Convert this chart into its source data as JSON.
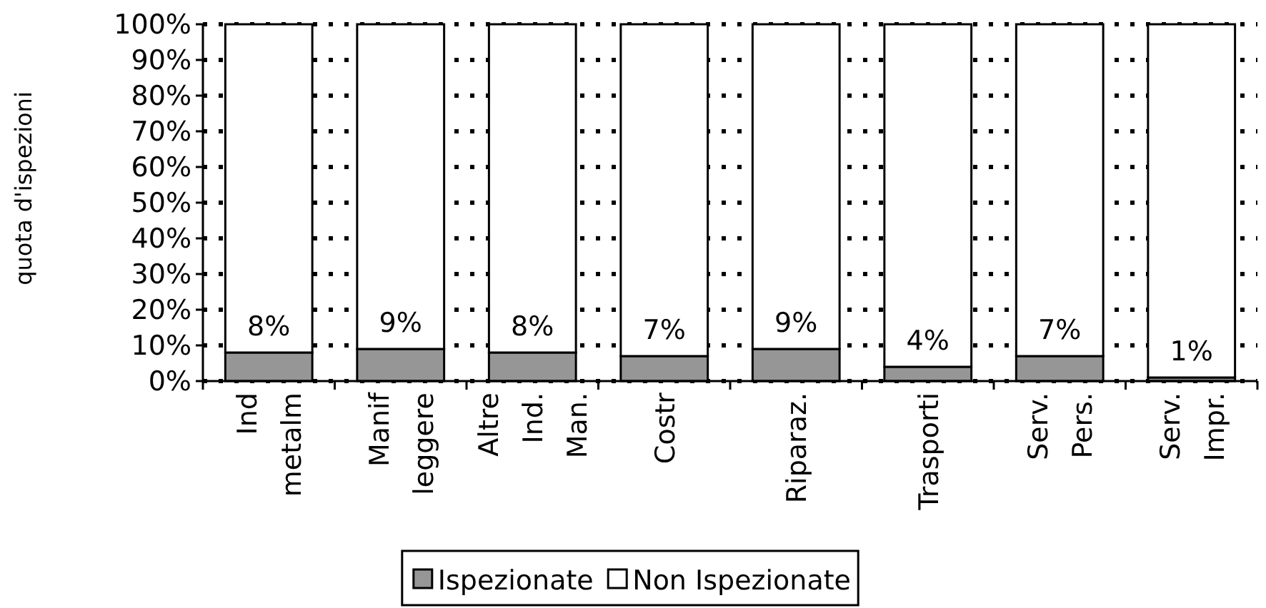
{
  "chart_data": {
    "type": "bar",
    "stacked": true,
    "ylabel": "quota d'ispezioni",
    "categories": [
      "Ind metalm",
      "Manif leggere",
      "Altre Ind. Man.",
      "Costr",
      "Riparaz.",
      "Trasporti",
      "Serv. Pers.",
      "Serv. Impr."
    ],
    "series": [
      {
        "name": "Ispezionate",
        "color": "#969696",
        "values": [
          8,
          9,
          8,
          7,
          9,
          4,
          7,
          1
        ],
        "value_labels": [
          "8%",
          "9%",
          "8%",
          "7%",
          "9%",
          "4%",
          "7%",
          "1%"
        ]
      },
      {
        "name": "Non Ispezionate",
        "color": "#ffffff",
        "values": [
          92,
          91,
          92,
          93,
          91,
          96,
          93,
          99
        ]
      }
    ],
    "ylim": [
      0,
      100
    ],
    "yticks": [
      {
        "value": 0,
        "label": "0%"
      },
      {
        "value": 10,
        "label": "10%"
      },
      {
        "value": 20,
        "label": "20%"
      },
      {
        "value": 30,
        "label": "30%"
      },
      {
        "value": 40,
        "label": "40%"
      },
      {
        "value": 50,
        "label": "50%"
      },
      {
        "value": 60,
        "label": "60%"
      },
      {
        "value": 70,
        "label": "70%"
      },
      {
        "value": 80,
        "label": "80%"
      },
      {
        "value": 90,
        "label": "90%"
      },
      {
        "value": 100,
        "label": "100%"
      }
    ],
    "grid": "y",
    "legend": "bottom"
  }
}
